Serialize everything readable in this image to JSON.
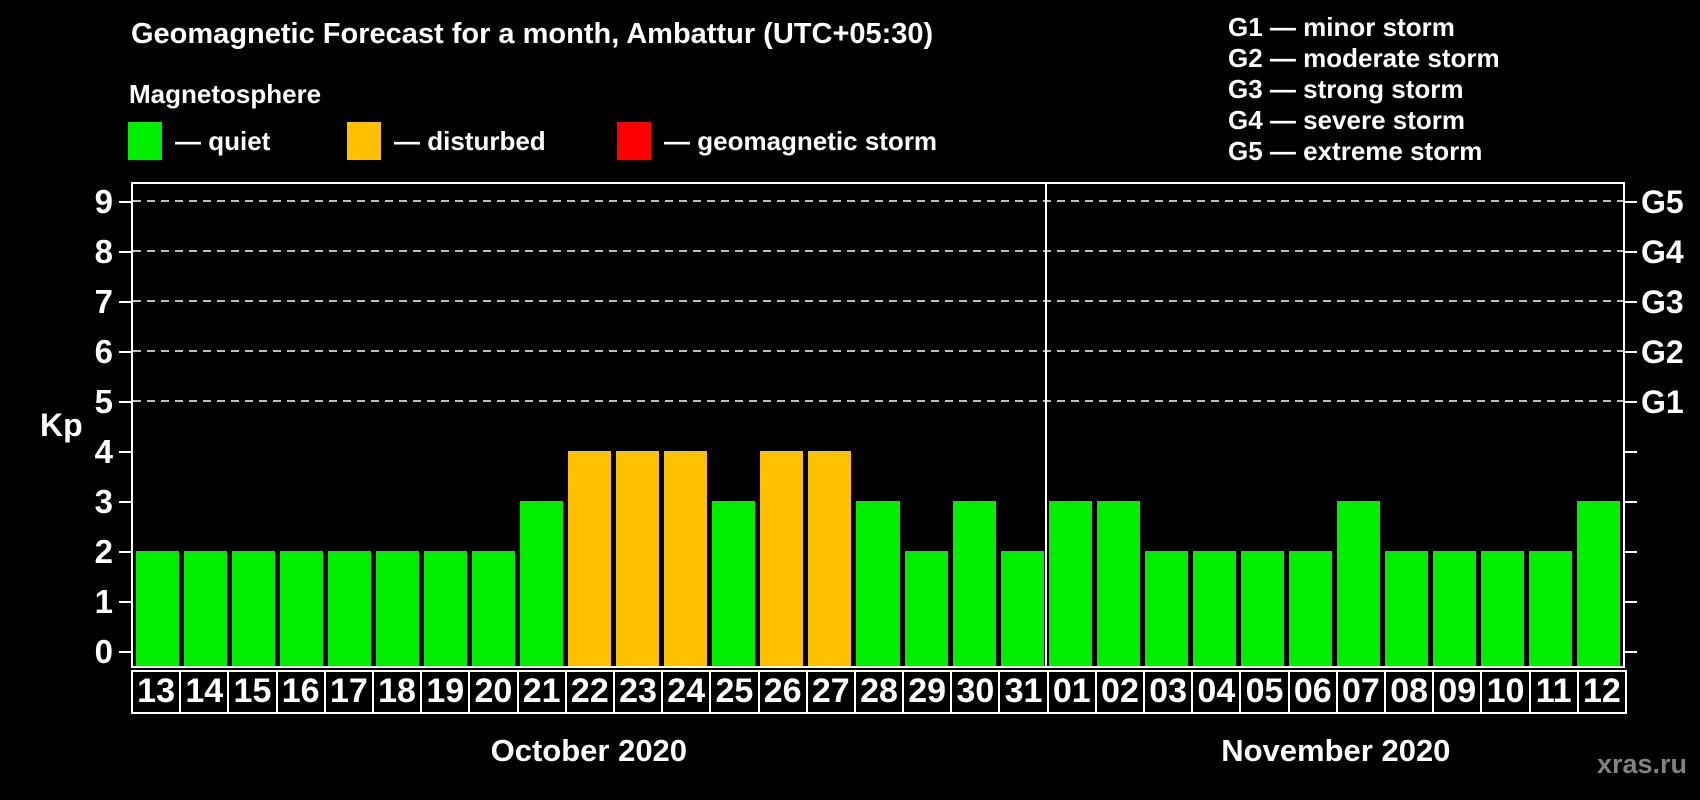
{
  "title": "Geomagnetic Forecast for a month, Ambattur (UTC+05:30)",
  "legend": {
    "heading": "Magnetosphere",
    "items": [
      {
        "key": "quiet",
        "label": "— quiet",
        "color": "#00EE00"
      },
      {
        "key": "disturbed",
        "label": "— disturbed",
        "color": "#FFC000"
      },
      {
        "key": "storm",
        "label": "— geomagnetic storm",
        "color": "#FF0000"
      }
    ]
  },
  "g_legend": [
    "G1 — minor storm",
    "G2 — moderate storm",
    "G3 — strong storm",
    "G4 — severe storm",
    "G5 — extreme storm"
  ],
  "watermark": "xras.ru",
  "chart_data": {
    "type": "bar",
    "title": "Geomagnetic Forecast for a month, Ambattur (UTC+05:30)",
    "ylabel": "Kp",
    "ylim": [
      0,
      9
    ],
    "yticks": [
      0,
      1,
      2,
      3,
      4,
      5,
      6,
      7,
      8,
      9
    ],
    "gridlines_kp": [
      5,
      6,
      7,
      8,
      9
    ],
    "grid": "dashed horizontal gridlines at Kp 5-9 (G1-G5 storm thresholds)",
    "right_axis": [
      {
        "kp": 5,
        "label": "G1"
      },
      {
        "kp": 6,
        "label": "G2"
      },
      {
        "kp": 7,
        "label": "G3"
      },
      {
        "kp": 8,
        "label": "G4"
      },
      {
        "kp": 9,
        "label": "G5"
      }
    ],
    "months": [
      {
        "label": "October 2020",
        "days": 19
      },
      {
        "label": "November 2020",
        "days": 12
      }
    ],
    "categories": [
      "13",
      "14",
      "15",
      "16",
      "17",
      "18",
      "19",
      "20",
      "21",
      "22",
      "23",
      "24",
      "25",
      "26",
      "27",
      "28",
      "29",
      "30",
      "31",
      "01",
      "02",
      "03",
      "04",
      "05",
      "06",
      "07",
      "08",
      "09",
      "10",
      "11",
      "12"
    ],
    "values": [
      2,
      2,
      2,
      2,
      2,
      2,
      2,
      2,
      3,
      4,
      4,
      4,
      3,
      4,
      4,
      3,
      2,
      3,
      2,
      3,
      3,
      2,
      2,
      2,
      2,
      3,
      2,
      2,
      2,
      2,
      3
    ],
    "bar_colors": {
      "quiet": "#00EE00",
      "disturbed": "#FFC000",
      "storm": "#FF0000"
    },
    "color_rule": "Kp<=3 quiet(green), Kp=4 disturbed(orange), Kp>=5 storm(red)",
    "legend_position": "top-left and top-right"
  }
}
